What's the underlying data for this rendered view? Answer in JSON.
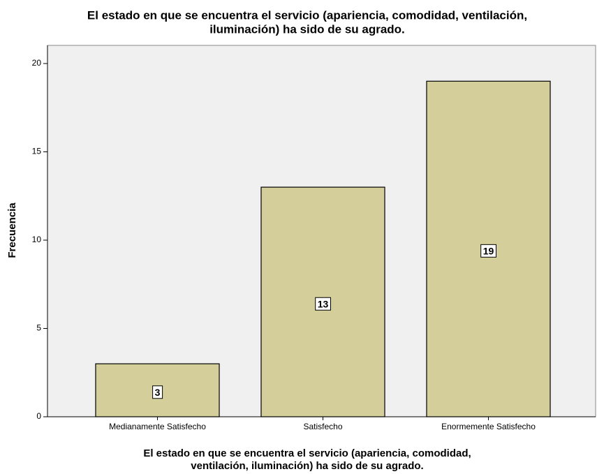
{
  "chart_data": {
    "type": "bar",
    "title": [
      "El estado en que se encuentra el servicio (apariencia, comodidad, ventilación,",
      "iluminación) ha sido de su agrado."
    ],
    "x_label": [
      "El estado en que se encuentra el servicio (apariencia, comodidad,",
      "ventilación, iluminación) ha sido de su agrado."
    ],
    "y_label": "Frecuencia",
    "categories": [
      "Medianamente Satisfecho",
      "Satisfecho",
      "Enormemente Satisfecho"
    ],
    "values": [
      3,
      13,
      19
    ],
    "color": "#d3ce9a",
    "ylim": [
      0,
      21
    ],
    "yticks": [
      0,
      5,
      10,
      15,
      20
    ],
    "grid": false
  }
}
